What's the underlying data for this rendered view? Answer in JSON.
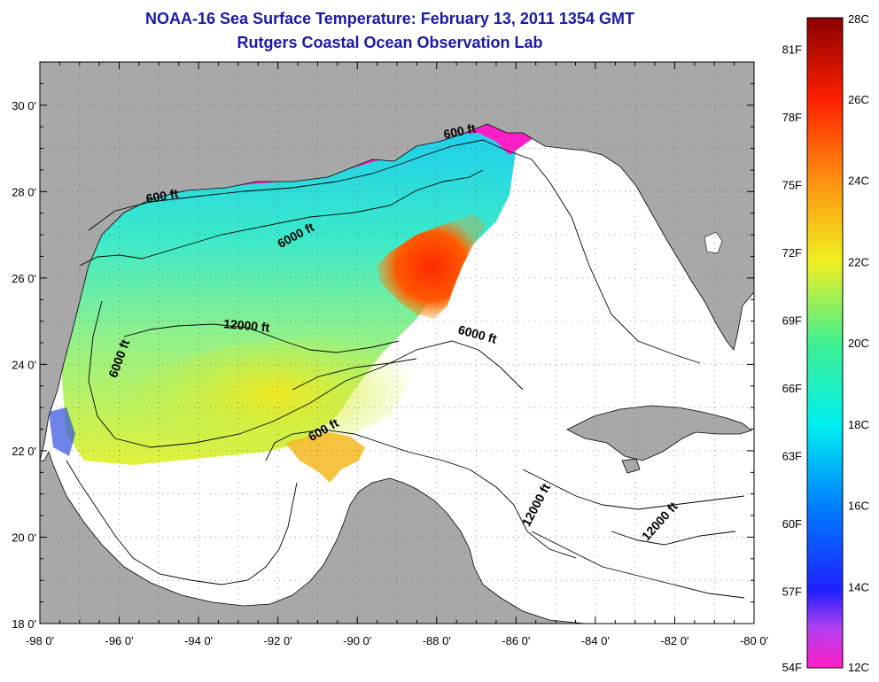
{
  "title": "NOAA-16 Sea Surface Temperature:  February 13, 2011 1354 GMT",
  "subtitle": "Rutgers Coastal Ocean Observation Lab",
  "map": {
    "lon_range": [
      -98,
      -80
    ],
    "lat_range": [
      18,
      31
    ],
    "x_ticks": [
      "-98 0'",
      "-96 0'",
      "-94 0'",
      "-92 0'",
      "-90 0'",
      "-88 0'",
      "-86 0'",
      "-84 0'",
      "-82 0'",
      "-80 0'"
    ],
    "y_ticks": [
      "18 0'",
      "20 0'",
      "22 0'",
      "24 0'",
      "26 0'",
      "28 0'",
      "30 0'"
    ],
    "grid": "dotted",
    "land_color": "#a8a8a8",
    "no_data_color": "#ffffff"
  },
  "contours": [
    {
      "label": "600 ft",
      "lon": -94.9,
      "lat": 27.8,
      "angle": -10
    },
    {
      "label": "600 ft",
      "lon": -87.4,
      "lat": 29.3,
      "angle": -12
    },
    {
      "label": "600 ft",
      "lon": -90.8,
      "lat": 22.4,
      "angle": -30
    },
    {
      "label": "6000 ft",
      "lon": -91.5,
      "lat": 26.9,
      "angle": -28
    },
    {
      "label": "6000 ft",
      "lon": -95.9,
      "lat": 24.1,
      "angle": -70
    },
    {
      "label": "6000 ft",
      "lon": -87.0,
      "lat": 24.6,
      "angle": 15
    },
    {
      "label": "12000 ft",
      "lon": -92.8,
      "lat": 24.8,
      "angle": 5
    },
    {
      "label": "12000 ft",
      "lon": -85.4,
      "lat": 20.7,
      "angle": -62
    },
    {
      "label": "12000 ft",
      "lon": -82.3,
      "lat": 20.3,
      "angle": -48
    }
  ],
  "colorbar": {
    "celsius_labels": [
      "28C",
      "26C",
      "24C",
      "22C",
      "20C",
      "18C",
      "16C",
      "14C",
      "12C"
    ],
    "fahrenheit_labels": [
      "81F",
      "78F",
      "75F",
      "72F",
      "69F",
      "66F",
      "63F",
      "60F",
      "57F",
      "54F"
    ],
    "celsius_values": [
      28,
      26,
      24,
      22,
      20,
      18,
      16,
      14,
      12
    ],
    "fahrenheit_values": [
      81,
      78,
      75,
      72,
      69,
      66,
      63,
      60,
      57,
      54
    ],
    "range_c": [
      12,
      28
    ],
    "stops": [
      {
        "c": 12,
        "color": "#ff1fc8"
      },
      {
        "c": 13,
        "color": "#b040f0"
      },
      {
        "c": 13.9,
        "color": "#2020ff"
      },
      {
        "c": 16,
        "color": "#0080ff"
      },
      {
        "c": 18,
        "color": "#00f0f0"
      },
      {
        "c": 20,
        "color": "#40f090"
      },
      {
        "c": 22,
        "color": "#f0f020"
      },
      {
        "c": 24,
        "color": "#ff9010"
      },
      {
        "c": 26,
        "color": "#ff2000"
      },
      {
        "c": 28,
        "color": "#8a0000"
      }
    ]
  }
}
